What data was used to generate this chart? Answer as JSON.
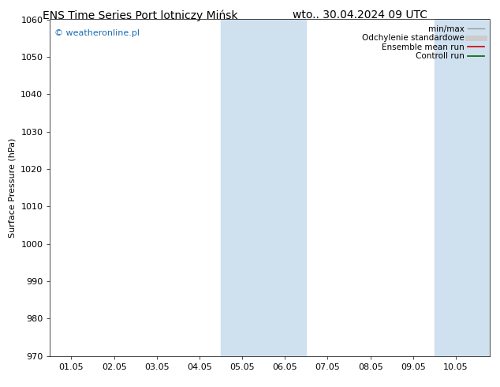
{
  "title_left": "ENS Time Series Port lotniczy Mińsk",
  "title_right": "wto.. 30.04.2024 09 UTC",
  "ylabel": "Surface Pressure (hPa)",
  "ylim": [
    970,
    1060
  ],
  "yticks": [
    970,
    980,
    990,
    1000,
    1010,
    1020,
    1030,
    1040,
    1050,
    1060
  ],
  "x_labels": [
    "01.05",
    "02.05",
    "03.05",
    "04.05",
    "05.05",
    "06.05",
    "07.05",
    "08.05",
    "09.05",
    "10.05"
  ],
  "x_positions": [
    0,
    1,
    2,
    3,
    4,
    5,
    6,
    7,
    8,
    9
  ],
  "xlim": [
    -0.5,
    9.8
  ],
  "shaded_bands": [
    {
      "x_start": 3.5,
      "x_end": 5.5,
      "color": "#cfe0ef",
      "alpha": 1.0
    },
    {
      "x_start": 8.5,
      "x_end": 9.8,
      "color": "#cfe0ef",
      "alpha": 1.0
    }
  ],
  "darker_lines": [
    4.5
  ],
  "watermark_text": "© weatheronline.pl",
  "watermark_color": "#1a6eb5",
  "legend_entries": [
    {
      "label": "min/max",
      "color": "#999999",
      "lw": 1.0
    },
    {
      "label": "Odchylenie standardowe",
      "color": "#cccccc",
      "lw": 5
    },
    {
      "label": "Ensemble mean run",
      "color": "#cc0000",
      "lw": 1.2
    },
    {
      "label": "Controll run",
      "color": "#006600",
      "lw": 1.2
    }
  ],
  "bg_color": "#ffffff",
  "plot_bg_color": "#ffffff",
  "title_fontsize": 10,
  "axis_label_fontsize": 8,
  "tick_fontsize": 8,
  "legend_fontsize": 7.5
}
